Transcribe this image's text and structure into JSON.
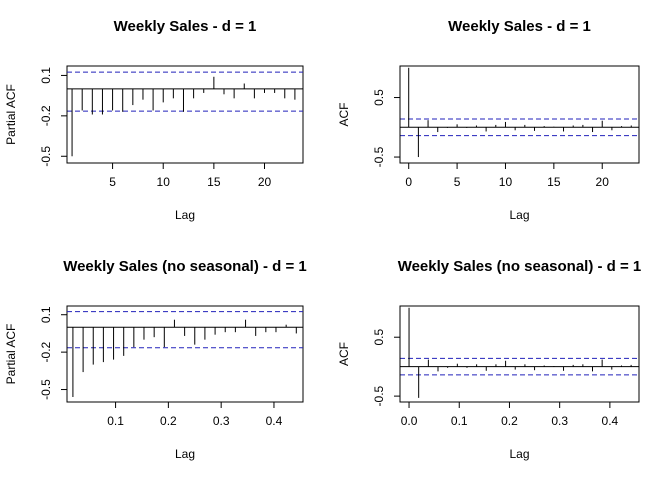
{
  "chart_data": [
    {
      "type": "bar",
      "title": "Weekly Sales - d = 1",
      "xlabel": "Lag",
      "ylabel": "Partial ACF",
      "xlim": [
        0.5,
        23.8
      ],
      "ylim": [
        -0.55,
        0.17
      ],
      "xticks": [
        5,
        10,
        15,
        20
      ],
      "xtick_labels": [
        "5",
        "10",
        "15",
        "20"
      ],
      "yticks": [
        0.1,
        -0.2,
        -0.5
      ],
      "ytick_labels": [
        "0.1",
        "-0.2",
        "-0.5"
      ],
      "conf_band": [
        0.125,
        -0.165
      ],
      "x": [
        1,
        2,
        3,
        4,
        5,
        6,
        7,
        8,
        9,
        10,
        11,
        12,
        13,
        14,
        15,
        16,
        17,
        18,
        19,
        20,
        21,
        22,
        23
      ],
      "values": [
        -0.5,
        -0.16,
        -0.19,
        -0.19,
        -0.16,
        -0.17,
        -0.12,
        -0.08,
        -0.16,
        -0.1,
        -0.07,
        -0.17,
        -0.07,
        -0.03,
        0.09,
        -0.04,
        -0.07,
        0.04,
        -0.07,
        -0.03,
        -0.03,
        -0.07,
        -0.08
      ]
    },
    {
      "type": "bar",
      "title": "Weekly Sales - d = 1",
      "xlabel": "Lag",
      "ylabel": "ACF",
      "xlim": [
        -0.9,
        23.8
      ],
      "ylim": [
        -0.6,
        1.03
      ],
      "xticks": [
        0,
        5,
        10,
        15,
        20
      ],
      "xtick_labels": [
        "0",
        "5",
        "10",
        "15",
        "20"
      ],
      "yticks": [
        0.5,
        -0.5
      ],
      "ytick_labels": [
        "0.5",
        "-0.5"
      ],
      "conf_band": [
        0.14,
        -0.14
      ],
      "x": [
        0,
        1,
        2,
        3,
        4,
        5,
        6,
        7,
        8,
        9,
        10,
        11,
        12,
        13,
        14,
        15,
        16,
        17,
        18,
        19,
        20,
        21,
        22,
        23
      ],
      "values": [
        1.0,
        -0.5,
        0.12,
        -0.08,
        -0.01,
        0.05,
        -0.01,
        0.03,
        -0.07,
        0.04,
        0.09,
        -0.05,
        0.04,
        -0.06,
        0.02,
        0.01,
        -0.07,
        0.03,
        0.04,
        -0.08,
        0.11,
        -0.05,
        0.02,
        0.03
      ]
    },
    {
      "type": "bar",
      "title": "Weekly Sales (no seasonal) - d = 1",
      "xlabel": "Lag",
      "ylabel": "Partial ACF",
      "xlim": [
        0.008,
        0.455
      ],
      "ylim": [
        -0.6,
        0.17
      ],
      "xticks": [
        0.1,
        0.2,
        0.3,
        0.4
      ],
      "xtick_labels": [
        "0.1",
        "0.2",
        "0.3",
        "0.4"
      ],
      "yticks": [
        0.1,
        -0.2,
        -0.5
      ],
      "ytick_labels": [
        "0.1",
        "-0.2",
        "-0.5"
      ],
      "conf_band": [
        0.125,
        -0.165
      ],
      "x": [
        0.0192,
        0.0385,
        0.0577,
        0.0769,
        0.0962,
        0.1154,
        0.1346,
        0.1538,
        0.1731,
        0.1923,
        0.2115,
        0.2308,
        0.25,
        0.2692,
        0.2885,
        0.3077,
        0.3269,
        0.3462,
        0.3654,
        0.3846,
        0.4038,
        0.4231,
        0.4423
      ],
      "values": [
        -0.56,
        -0.36,
        -0.3,
        -0.28,
        -0.26,
        -0.23,
        -0.16,
        -0.1,
        -0.08,
        -0.16,
        0.06,
        -0.07,
        -0.14,
        -0.1,
        -0.06,
        -0.04,
        -0.04,
        0.06,
        -0.07,
        -0.04,
        -0.04,
        0.02,
        -0.05
      ]
    },
    {
      "type": "bar",
      "title": "Weekly Sales (no seasonal) - d = 1",
      "xlabel": "Lag",
      "ylabel": "ACF",
      "xlim": [
        -0.018,
        0.458
      ],
      "ylim": [
        -0.6,
        1.03
      ],
      "xticks": [
        0.0,
        0.1,
        0.2,
        0.3,
        0.4
      ],
      "xtick_labels": [
        "0.0",
        "0.1",
        "0.2",
        "0.3",
        "0.4"
      ],
      "yticks": [
        0.5,
        -0.5
      ],
      "ytick_labels": [
        "0.5",
        "-0.5"
      ],
      "conf_band": [
        0.14,
        -0.14
      ],
      "x": [
        0,
        0.0192,
        0.0385,
        0.0577,
        0.0769,
        0.0962,
        0.1154,
        0.1346,
        0.1538,
        0.1731,
        0.1923,
        0.2115,
        0.2308,
        0.25,
        0.2692,
        0.2885,
        0.3077,
        0.3269,
        0.3462,
        0.3654,
        0.3846,
        0.4038,
        0.4231,
        0.4423
      ],
      "values": [
        1.0,
        -0.53,
        0.12,
        -0.08,
        -0.02,
        0.05,
        -0.02,
        0.04,
        -0.07,
        0.04,
        0.1,
        -0.05,
        0.04,
        -0.06,
        0.02,
        0.01,
        -0.07,
        0.03,
        0.04,
        -0.08,
        0.12,
        -0.05,
        0.02,
        0.03
      ]
    }
  ]
}
